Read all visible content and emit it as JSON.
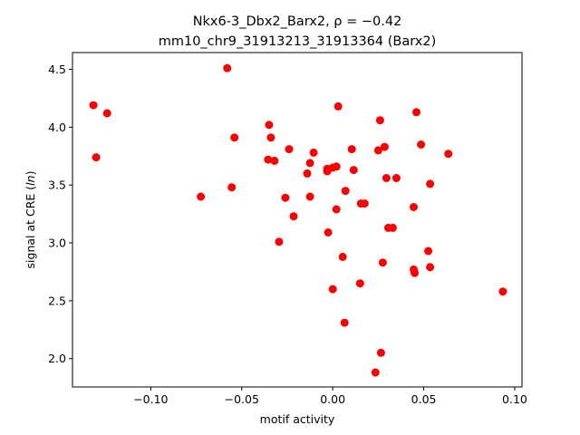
{
  "chart_data": {
    "type": "scatter",
    "title_line1": "Nkx6-3_Dbx2_Barx2, ρ = −0.42",
    "title_line2": "mm10_chr9_31913213_31913364 (Barx2)",
    "xlabel": "motif activity",
    "ylabel_prefix": "signal at CRE (",
    "ylabel_italic": "ln",
    "ylabel_suffix": ")",
    "xlim": [
      -0.143,
      0.104
    ],
    "ylim": [
      1.755,
      4.645
    ],
    "xticks": [
      -0.1,
      -0.05,
      0.0,
      0.05,
      0.1
    ],
    "xtick_labels": [
      "−0.10",
      "−0.05",
      "0.00",
      "0.05",
      "0.10"
    ],
    "yticks": [
      2.0,
      2.5,
      3.0,
      3.5,
      4.0,
      4.5
    ],
    "ytick_labels": [
      "2.0",
      "2.5",
      "3.0",
      "3.5",
      "4.0",
      "4.5"
    ],
    "grid": false,
    "marker_color": "#ff0000",
    "points": [
      {
        "x": -0.1315,
        "y": 4.19
      },
      {
        "x": -0.13,
        "y": 3.74
      },
      {
        "x": -0.124,
        "y": 4.12
      },
      {
        "x": -0.0725,
        "y": 3.4
      },
      {
        "x": -0.058,
        "y": 4.51
      },
      {
        "x": -0.0555,
        "y": 3.48
      },
      {
        "x": -0.054,
        "y": 3.91
      },
      {
        "x": -0.0355,
        "y": 3.72
      },
      {
        "x": -0.035,
        "y": 4.02
      },
      {
        "x": -0.034,
        "y": 3.91
      },
      {
        "x": -0.032,
        "y": 3.71
      },
      {
        "x": -0.0295,
        "y": 3.01
      },
      {
        "x": -0.026,
        "y": 3.39
      },
      {
        "x": -0.024,
        "y": 3.81
      },
      {
        "x": -0.0215,
        "y": 3.23
      },
      {
        "x": -0.014,
        "y": 3.6
      },
      {
        "x": -0.0125,
        "y": 3.69
      },
      {
        "x": -0.0125,
        "y": 3.4
      },
      {
        "x": -0.0105,
        "y": 3.78
      },
      {
        "x": -0.003,
        "y": 3.64
      },
      {
        "x": -0.003,
        "y": 3.62
      },
      {
        "x": -0.0025,
        "y": 3.09
      },
      {
        "x": 0.0,
        "y": 3.65
      },
      {
        "x": 0.0,
        "y": 2.6
      },
      {
        "x": 0.002,
        "y": 3.66
      },
      {
        "x": 0.002,
        "y": 3.29
      },
      {
        "x": 0.003,
        "y": 4.18
      },
      {
        "x": 0.0055,
        "y": 2.88
      },
      {
        "x": 0.0065,
        "y": 2.31
      },
      {
        "x": 0.007,
        "y": 3.45
      },
      {
        "x": 0.0105,
        "y": 3.81
      },
      {
        "x": 0.0115,
        "y": 3.63
      },
      {
        "x": 0.015,
        "y": 2.65
      },
      {
        "x": 0.0155,
        "y": 3.34
      },
      {
        "x": 0.0175,
        "y": 3.34
      },
      {
        "x": 0.0235,
        "y": 1.88
      },
      {
        "x": 0.025,
        "y": 3.8
      },
      {
        "x": 0.026,
        "y": 4.06
      },
      {
        "x": 0.0265,
        "y": 2.05
      },
      {
        "x": 0.0275,
        "y": 2.83
      },
      {
        "x": 0.0285,
        "y": 3.83
      },
      {
        "x": 0.0295,
        "y": 3.56
      },
      {
        "x": 0.0305,
        "y": 3.13
      },
      {
        "x": 0.033,
        "y": 3.13
      },
      {
        "x": 0.035,
        "y": 3.56
      },
      {
        "x": 0.0445,
        "y": 2.77
      },
      {
        "x": 0.0445,
        "y": 3.31
      },
      {
        "x": 0.045,
        "y": 2.74
      },
      {
        "x": 0.046,
        "y": 4.13
      },
      {
        "x": 0.0485,
        "y": 3.85
      },
      {
        "x": 0.0525,
        "y": 2.93
      },
      {
        "x": 0.0535,
        "y": 2.79
      },
      {
        "x": 0.0535,
        "y": 3.51
      },
      {
        "x": 0.0635,
        "y": 3.77
      },
      {
        "x": 0.0935,
        "y": 2.58
      }
    ]
  }
}
